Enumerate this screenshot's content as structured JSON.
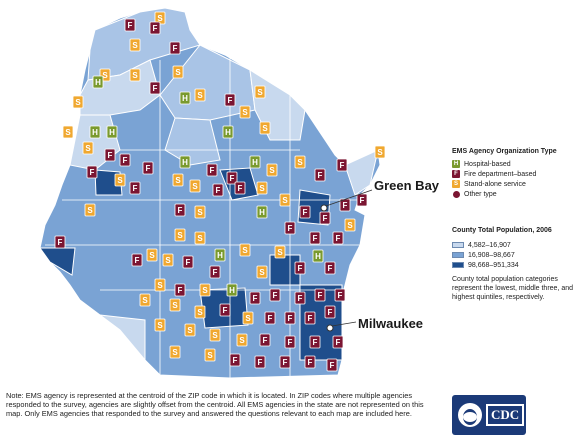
{
  "map": {
    "cities": [
      {
        "name": "Green Bay"
      },
      {
        "name": "Milwaukee"
      }
    ]
  },
  "legend": {
    "agency_title": "EMS Agency Organization Type",
    "agency_types": [
      {
        "glyph": "H",
        "label": "Hospital-based",
        "color": "#7a9a2e"
      },
      {
        "glyph": "F",
        "label": "Fire department–based",
        "color": "#7b1532"
      },
      {
        "glyph": "S",
        "label": "Stand-alone service",
        "color": "#f0a830"
      },
      {
        "glyph": "",
        "label": "Other type",
        "color": "#7b1532"
      }
    ],
    "population_title": "County Total Population, 2006",
    "population_classes": [
      {
        "label": "4,582–16,907",
        "color": "#c8d9ee"
      },
      {
        "label": "16,908–98,667",
        "color": "#7aa3d4"
      },
      {
        "label": "98,668–951,334",
        "color": "#1f4e8c"
      }
    ],
    "population_note": "County total population categories represent the lowest, middle three, and highest quintiles, respectively."
  },
  "footnote": "Note: EMS agency is represented at the centroid of the ZIP code in which it is located. In ZIP codes where multiple agencies responded to the survey, agencies are slightly offset from the centroid. All EMS agencies in the state are not represented on this map. Only EMS agencies that responded to the survey and answered the questions relevant to each map are included here.",
  "logo": {
    "text": "CDC"
  },
  "colors": {
    "hospital": "#7a9a2e",
    "fire": "#7b1532",
    "standalone": "#f0a830",
    "county_low": "#c8d9ee",
    "county_mid": "#7aa3d4",
    "county_high": "#1f4e8c"
  }
}
